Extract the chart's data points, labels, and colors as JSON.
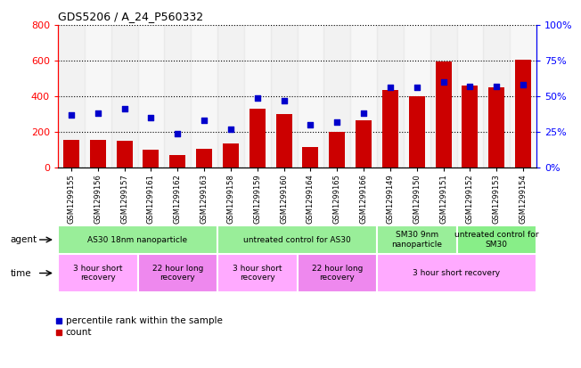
{
  "title": "GDS5206 / A_24_P560332",
  "samples": [
    "GSM1299155",
    "GSM1299156",
    "GSM1299157",
    "GSM1299161",
    "GSM1299162",
    "GSM1299163",
    "GSM1299158",
    "GSM1299159",
    "GSM1299160",
    "GSM1299164",
    "GSM1299165",
    "GSM1299166",
    "GSM1299149",
    "GSM1299150",
    "GSM1299151",
    "GSM1299152",
    "GSM1299153",
    "GSM1299154"
  ],
  "counts": [
    155,
    155,
    148,
    100,
    70,
    105,
    135,
    330,
    300,
    115,
    198,
    263,
    435,
    400,
    595,
    460,
    450,
    605
  ],
  "percentiles": [
    37,
    38,
    41,
    35,
    24,
    33,
    27,
    49,
    47,
    30,
    32,
    38,
    56,
    56,
    60,
    57,
    57,
    58
  ],
  "bar_color": "#cc0000",
  "dot_color": "#0000cc",
  "ylim_left": [
    0,
    800
  ],
  "ylim_right": [
    0,
    100
  ],
  "yticks_left": [
    0,
    200,
    400,
    600,
    800
  ],
  "yticks_right": [
    0,
    25,
    50,
    75,
    100
  ],
  "agent_groups": [
    {
      "label": "AS30 18nm nanoparticle",
      "start": 0,
      "end": 6,
      "color": "#99ee99"
    },
    {
      "label": "untreated control for AS30",
      "start": 6,
      "end": 12,
      "color": "#99ee99"
    },
    {
      "label": "SM30 9nm\nnanoparticle",
      "start": 12,
      "end": 15,
      "color": "#99ee99"
    },
    {
      "label": "untreated control for\nSM30",
      "start": 15,
      "end": 18,
      "color": "#88ee88"
    }
  ],
  "time_groups": [
    {
      "label": "3 hour short\nrecovery",
      "start": 0,
      "end": 3,
      "color": "#ffaaff"
    },
    {
      "label": "22 hour long\nrecovery",
      "start": 3,
      "end": 6,
      "color": "#ee88ee"
    },
    {
      "label": "3 hour short\nrecovery",
      "start": 6,
      "end": 9,
      "color": "#ffaaff"
    },
    {
      "label": "22 hour long\nrecovery",
      "start": 9,
      "end": 12,
      "color": "#ee88ee"
    },
    {
      "label": "3 hour short recovery",
      "start": 12,
      "end": 18,
      "color": "#ffaaff"
    }
  ],
  "legend_count_color": "#cc0000",
  "legend_dot_color": "#0000cc"
}
